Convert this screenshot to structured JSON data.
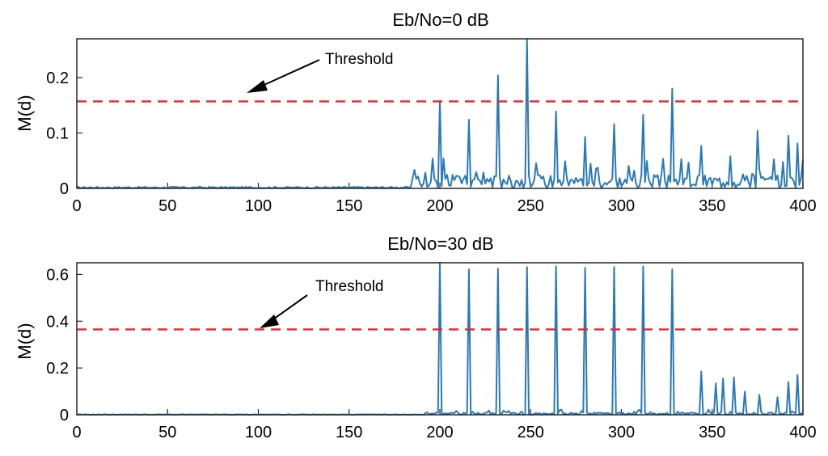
{
  "chart_data": [
    {
      "type": "line",
      "title": "Eb/No=0 dB",
      "xlabel": "",
      "ylabel": "M(d)",
      "xlim": [
        0,
        400
      ],
      "ylim": [
        0,
        0.27
      ],
      "xticks": [
        0,
        50,
        100,
        150,
        200,
        250,
        300,
        350,
        400
      ],
      "xtick_labels": [
        "0",
        "50",
        "100",
        "150",
        "200",
        "250",
        "300",
        "350",
        "400"
      ],
      "yticks": [
        0,
        0.1,
        0.2
      ],
      "ytick_labels": [
        "0",
        "0.1",
        "0.2"
      ],
      "threshold": 0.157,
      "annotation": {
        "text": "Threshold",
        "arrow_to": [
          100,
          0.17
        ]
      },
      "series_color": "#2a7ab9",
      "threshold_color": "#e8262b",
      "peaks": [
        {
          "x": 200,
          "y": 0.158
        },
        {
          "x": 216,
          "y": 0.124
        },
        {
          "x": 232,
          "y": 0.204
        },
        {
          "x": 248,
          "y": 0.278
        },
        {
          "x": 264,
          "y": 0.139
        },
        {
          "x": 280,
          "y": 0.093
        },
        {
          "x": 296,
          "y": 0.116
        },
        {
          "x": 312,
          "y": 0.133
        },
        {
          "x": 328,
          "y": 0.18
        },
        {
          "x": 344,
          "y": 0.077
        },
        {
          "x": 360,
          "y": 0.058
        },
        {
          "x": 375,
          "y": 0.104
        },
        {
          "x": 392,
          "y": 0.095
        },
        {
          "x": 397,
          "y": 0.081
        }
      ],
      "noise": {
        "before_onset": 0.003,
        "onset_x": 185,
        "after_onset": 0.025
      }
    },
    {
      "type": "line",
      "title": "Eb/No=30 dB",
      "xlabel": "",
      "ylabel": "M(d)",
      "xlim": [
        0,
        400
      ],
      "ylim": [
        0,
        0.65
      ],
      "xticks": [
        0,
        50,
        100,
        150,
        200,
        250,
        300,
        350,
        400
      ],
      "xtick_labels": [
        "0",
        "50",
        "100",
        "150",
        "200",
        "250",
        "300",
        "350",
        "400"
      ],
      "yticks": [
        0,
        0.2,
        0.4,
        0.6
      ],
      "ytick_labels": [
        "0",
        "0.2",
        "0.4",
        "0.6"
      ],
      "threshold": 0.365,
      "annotation": {
        "text": "Threshold",
        "arrow_to": [
          100,
          0.37
        ]
      },
      "series_color": "#2a7ab9",
      "threshold_color": "#e8262b",
      "peaks": [
        {
          "x": 200,
          "y": 0.65
        },
        {
          "x": 216,
          "y": 0.622
        },
        {
          "x": 232,
          "y": 0.625
        },
        {
          "x": 248,
          "y": 0.632
        },
        {
          "x": 264,
          "y": 0.635
        },
        {
          "x": 280,
          "y": 0.628
        },
        {
          "x": 296,
          "y": 0.632
        },
        {
          "x": 312,
          "y": 0.634
        },
        {
          "x": 328,
          "y": 0.622
        },
        {
          "x": 344,
          "y": 0.185
        },
        {
          "x": 352,
          "y": 0.135
        },
        {
          "x": 356,
          "y": 0.155
        },
        {
          "x": 362,
          "y": 0.16
        },
        {
          "x": 368,
          "y": 0.1
        },
        {
          "x": 376,
          "y": 0.085
        },
        {
          "x": 386,
          "y": 0.075
        },
        {
          "x": 392,
          "y": 0.14
        },
        {
          "x": 397,
          "y": 0.17
        }
      ],
      "noise": {
        "before_onset": 0.002,
        "onset_x": 190,
        "after_onset": 0.01
      }
    }
  ]
}
